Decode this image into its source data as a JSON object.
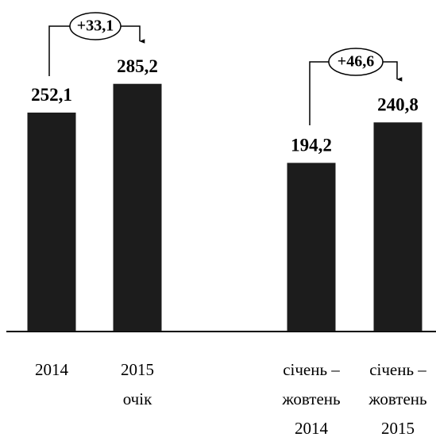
{
  "chart_data": {
    "type": "bar",
    "categories": [
      [
        "2014"
      ],
      [
        "2015",
        "очік"
      ],
      [
        "січень –",
        "жовтень",
        "2014"
      ],
      [
        "січень –",
        "жовтень",
        "2015"
      ]
    ],
    "values": [
      252.1,
      285.2,
      194.2,
      240.8
    ],
    "value_labels": [
      "252,1",
      "285,2",
      "194,2",
      "240,8"
    ],
    "color": "#1c1c1c",
    "annotations": [
      "+33,1",
      "+46,6"
    ]
  }
}
